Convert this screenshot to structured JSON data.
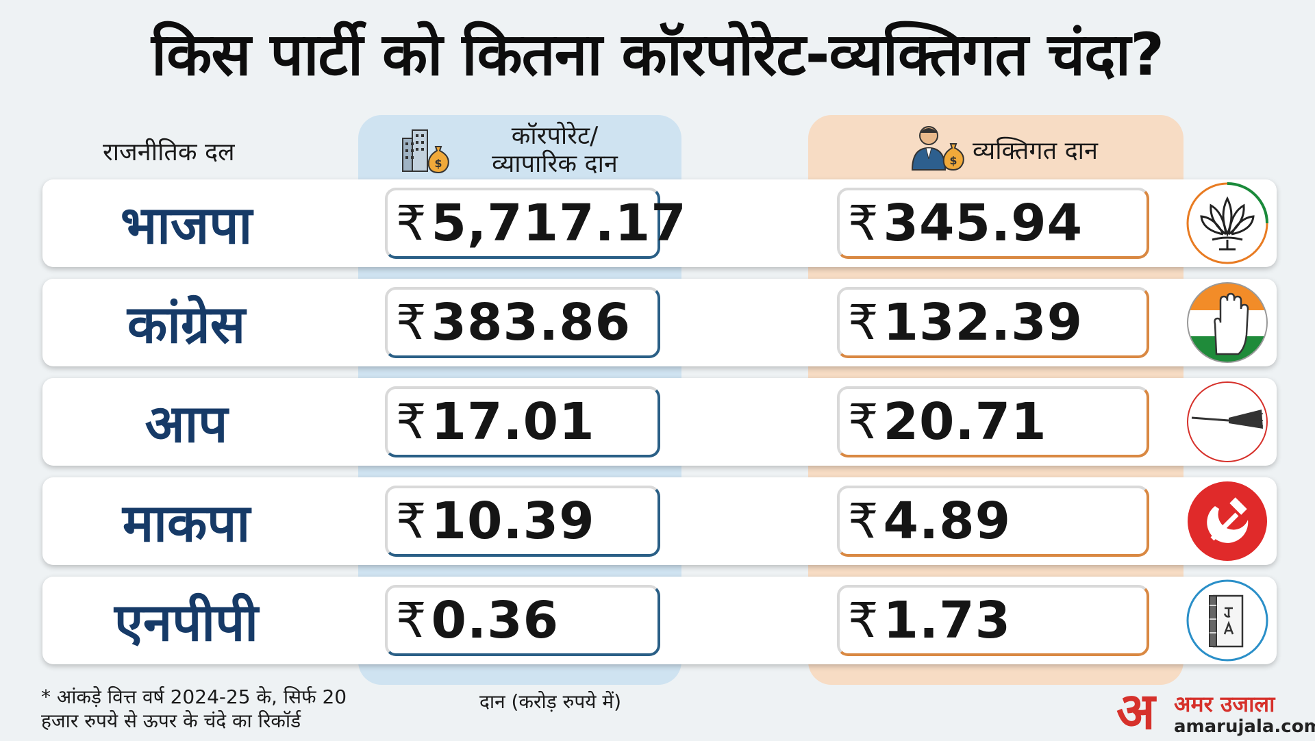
{
  "title": "किस पार्टी को कितना कॉरपोरेट-व्यक्तिगत चंदा?",
  "headers": {
    "party": "राजनीतिक दल",
    "corporate_line1": "कॉरपोरेट/",
    "corporate_line2": "व्यापारिक दान",
    "individual": "व्यक्तिगत दान"
  },
  "currency_symbol": "₹",
  "chart_data": {
    "type": "table",
    "title": "किस पार्टी को कितना कॉरपोरेट-व्यक्तिगत चंदा?",
    "columns": [
      "राजनीतिक दल",
      "कॉरपोरेट/व्यापारिक दान",
      "व्यक्तिगत दान"
    ],
    "unit": "दान (करोड़ रुपये में)",
    "rows": [
      {
        "party": "भाजपा",
        "corporate": "5,717.17",
        "individual": "345.94",
        "logo": "lotus-icon"
      },
      {
        "party": "कांग्रेस",
        "corporate": "383.86",
        "individual": "132.39",
        "logo": "hand-icon"
      },
      {
        "party": "आप",
        "corporate": "17.01",
        "individual": "20.71",
        "logo": "broom-icon"
      },
      {
        "party": "माकपा",
        "corporate": "10.39",
        "individual": "4.89",
        "logo": "hammer-sickle-icon"
      },
      {
        "party": "एनपीपी",
        "corporate": "0.36",
        "individual": "1.73",
        "logo": "book-icon"
      }
    ]
  },
  "footnote_line1": "* आंकड़े वित्त वर्ष 2024-25 के, सिर्फ 20",
  "footnote_line2": "हजार रुपये से ऊपर के चंदे का रिकॉर्ड",
  "unit_note": "दान (करोड़ रुपये में)",
  "brand": {
    "mark": "अ",
    "name": "अमर उजाला",
    "url": "amarujala.com"
  },
  "colors": {
    "party_text": "#163a67",
    "corporate_band": "#cfe3f1",
    "individual_band": "#f7dcc4",
    "brand_red": "#d6312b"
  }
}
